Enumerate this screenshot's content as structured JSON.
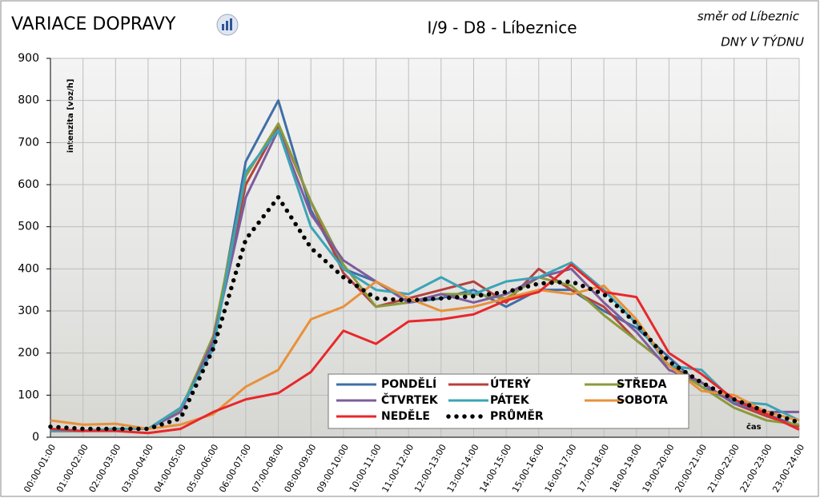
{
  "chart_data": {
    "type": "line",
    "title": "VARIACE DOPRAVY",
    "subtitle": "I/9 - D8 - Líbeznice",
    "annotations": [
      "směr od Líbeznic",
      "DNY V TÝDNU"
    ],
    "y_label": "intenzita [voz/h]",
    "x_label": "čas",
    "categories": [
      "00:00-01:00",
      "01:00-02:00",
      "02:00-03:00",
      "03:00-04:00",
      "04:00-05:00",
      "05:00-06:00",
      "06:00-07:00",
      "07:00-08:00",
      "08:00-09:00",
      "09:00-10:00",
      "10:00-11:00",
      "11:00-12:00",
      "12:00-13:00",
      "13:00-14:00",
      "14:00-15:00",
      "15:00-16:00",
      "16:00-17:00",
      "17:00-18:00",
      "18:00-19:00",
      "19:00-20:00",
      "20:00-21:00",
      "21:00-22:00",
      "22:00-23:00",
      "23:00-24:00"
    ],
    "series": [
      {
        "name": "PONDĚLÍ",
        "color": "#3f6fa6",
        "values": [
          15,
          15,
          20,
          20,
          70,
          220,
          655,
          800,
          540,
          400,
          370,
          320,
          330,
          350,
          310,
          350,
          350,
          300,
          260,
          190,
          120,
          85,
          55,
          25
        ]
      },
      {
        "name": "ÚTERÝ",
        "color": "#b5413f",
        "values": [
          15,
          15,
          20,
          20,
          65,
          230,
          600,
          740,
          560,
          390,
          310,
          330,
          350,
          370,
          320,
          400,
          350,
          310,
          230,
          170,
          130,
          80,
          50,
          25
        ]
      },
      {
        "name": "STŘEDA",
        "color": "#8a9b3c",
        "values": [
          15,
          15,
          20,
          20,
          65,
          240,
          620,
          745,
          560,
          410,
          310,
          320,
          340,
          340,
          330,
          380,
          360,
          290,
          230,
          170,
          120,
          70,
          40,
          30
        ]
      },
      {
        "name": "ČTVRTEK",
        "color": "#7d5c9c",
        "values": [
          15,
          15,
          20,
          20,
          60,
          230,
          570,
          730,
          530,
          420,
          370,
          320,
          340,
          320,
          340,
          380,
          400,
          320,
          250,
          160,
          130,
          80,
          60,
          60
        ]
      },
      {
        "name": "PÁTEK",
        "color": "#3ba4b6",
        "values": [
          15,
          15,
          20,
          20,
          70,
          210,
          630,
          730,
          500,
          400,
          350,
          340,
          380,
          340,
          370,
          380,
          415,
          350,
          270,
          170,
          160,
          85,
          78,
          40
        ]
      },
      {
        "name": "SOBOTA",
        "color": "#e8913a",
        "values": [
          40,
          30,
          32,
          20,
          30,
          55,
          120,
          160,
          280,
          310,
          370,
          330,
          300,
          310,
          330,
          350,
          340,
          360,
          280,
          170,
          110,
          100,
          60,
          40
        ]
      },
      {
        "name": "NEDĚLE",
        "color": "#e8272b",
        "values": [
          20,
          15,
          15,
          10,
          20,
          60,
          90,
          105,
          155,
          253,
          222,
          275,
          280,
          292,
          325,
          345,
          410,
          345,
          333,
          200,
          150,
          90,
          55,
          18
        ]
      },
      {
        "name": "PRŮMĚR",
        "color": "#000000",
        "dotted": true,
        "values": [
          25,
          20,
          20,
          20,
          45,
          210,
          470,
          570,
          450,
          380,
          330,
          325,
          330,
          335,
          345,
          365,
          370,
          340,
          270,
          180,
          130,
          90,
          60,
          35
        ]
      }
    ],
    "ylim": [
      0,
      900
    ],
    "yticks": [
      0,
      100,
      200,
      300,
      400,
      500,
      600,
      700,
      800,
      900
    ],
    "grid": true
  }
}
